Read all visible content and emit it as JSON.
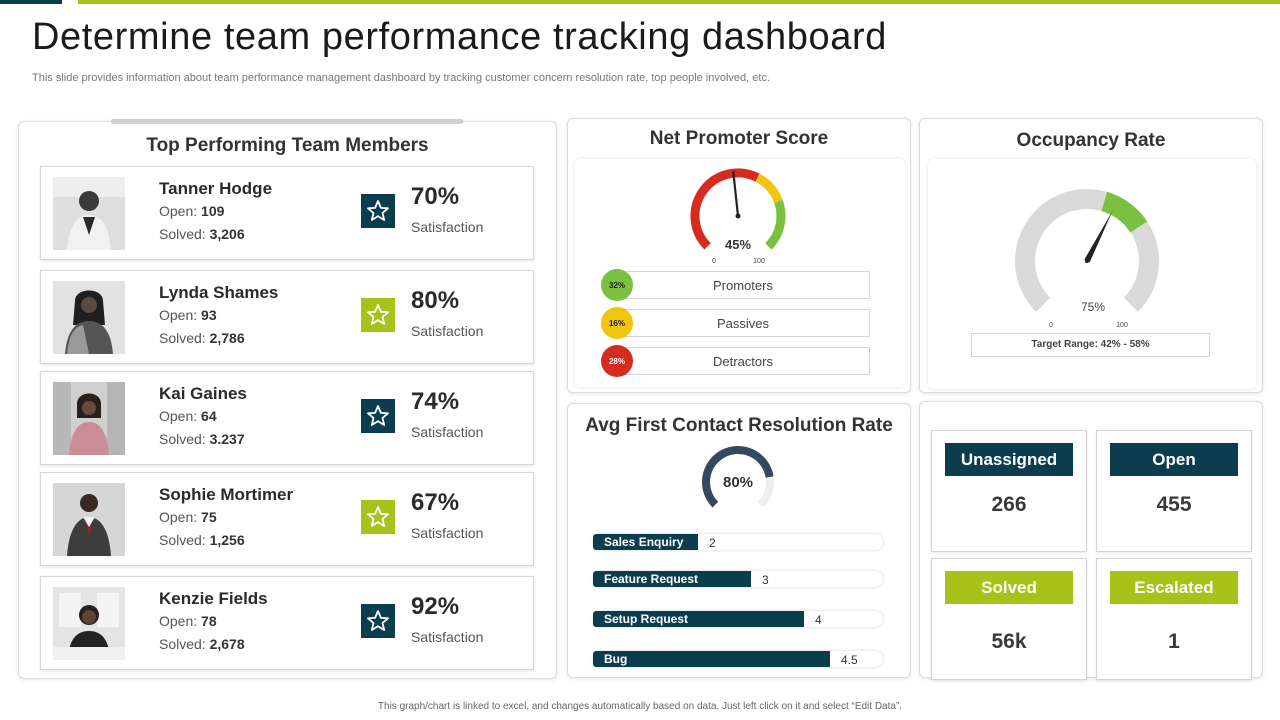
{
  "header": {
    "title": "Determine team performance tracking dashboard",
    "subtitle": "This slide provides information about team performance management dashboard by tracking customer concern resolution rate, top people involved, etc."
  },
  "footer": {
    "note": "This graph/chart is linked to excel, and changes automatically based on data. Just left click on it and select “Edit Data”."
  },
  "team": {
    "title": "Top Performing Team Members",
    "open_label": "Open:",
    "solved_label": "Solved:",
    "satisfaction_label": "Satisfaction",
    "members": [
      {
        "name": "Tanner Hodge",
        "open": "109",
        "solved": "3,206",
        "satisfaction": "70%",
        "star": "dark"
      },
      {
        "name": "Lynda Shames",
        "open": "93",
        "solved": "2,786",
        "satisfaction": "80%",
        "star": "green"
      },
      {
        "name": "Kai Gaines",
        "open": "64",
        "solved": "3.237",
        "satisfaction": "74%",
        "star": "dark"
      },
      {
        "name": "Sophie Mortimer",
        "open": "75",
        "solved": "1,256",
        "satisfaction": "67%",
        "star": "green"
      },
      {
        "name": "Kenzie Fields",
        "open": "78",
        "solved": "2,678",
        "satisfaction": "92%",
        "star": "dark"
      }
    ]
  },
  "nps": {
    "title": "Net Promoter Score",
    "score": "45%",
    "score_value": 45,
    "scale_min": "0",
    "scale_max": "100",
    "rows": [
      {
        "label": "Promoters",
        "pct": "32%",
        "color": "#7ac142"
      },
      {
        "label": "Passives",
        "pct": "16%",
        "color": "#f1c40f"
      },
      {
        "label": "Detractors",
        "pct": "28%",
        "color": "#d62b1f"
      }
    ]
  },
  "occupancy": {
    "title": "Occupancy Rate",
    "value": "75%",
    "value_number": 75,
    "scale_min": "0",
    "scale_max": "100",
    "target": "Target Range: 42% - 58%"
  },
  "resolution": {
    "title": "Avg First Contact Resolution Rate",
    "rate": "80%",
    "rate_value": 80,
    "max": 5.5,
    "items": [
      {
        "label": "Sales Enquiry",
        "value": 2,
        "display": "2"
      },
      {
        "label": "Feature Request",
        "value": 3,
        "display": "3"
      },
      {
        "label": "Setup Request",
        "value": 4,
        "display": "4"
      },
      {
        "label": "Bug",
        "value": 4.5,
        "display": "4.5"
      }
    ]
  },
  "tickets": [
    {
      "label": "Unassigned",
      "value": "266",
      "color": "#0b3d4f"
    },
    {
      "label": "Open",
      "value": "455",
      "color": "#0b3d4f"
    },
    {
      "label": "Solved",
      "value": "56k",
      "color": "#a8c21a"
    },
    {
      "label": "Escalated",
      "value": "1",
      "color": "#a8c21a"
    }
  ],
  "colors": {
    "dark_teal": "#0b3d4f",
    "accent_green": "#a8c21a",
    "gauge_red": "#d62b1f",
    "gauge_yellow": "#f1c40f",
    "gauge_green": "#7ac142",
    "gauge_gray": "#d9d9d9",
    "ring_navy": "#34495e"
  }
}
